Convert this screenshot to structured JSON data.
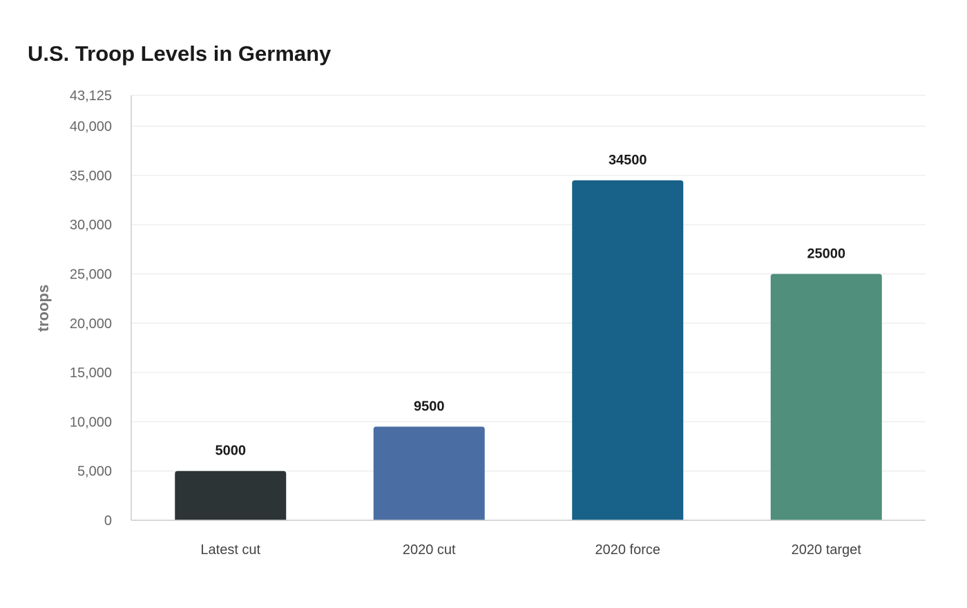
{
  "chart_data": {
    "type": "bar",
    "title": "U.S. Troop Levels in Germany",
    "xlabel": "",
    "ylabel": "troops",
    "categories": [
      "Latest cut",
      "2020 cut",
      "2020 force",
      "2020 target"
    ],
    "values": [
      5000,
      9500,
      34500,
      25000
    ],
    "data_labels": [
      "5000",
      "9500",
      "34500",
      "25000"
    ],
    "colors": [
      "#2d3436",
      "#4a6ea3",
      "#186289",
      "#4f8f7c"
    ],
    "ylim": [
      0,
      43125
    ],
    "yticks": [
      0,
      5000,
      10000,
      15000,
      20000,
      25000,
      30000,
      35000,
      40000,
      43125
    ],
    "ytick_labels": [
      "0",
      "5,000",
      "10,000",
      "15,000",
      "20,000",
      "25,000",
      "30,000",
      "35,000",
      "40,000",
      "43,125"
    ],
    "grid": true,
    "legend": "none"
  }
}
